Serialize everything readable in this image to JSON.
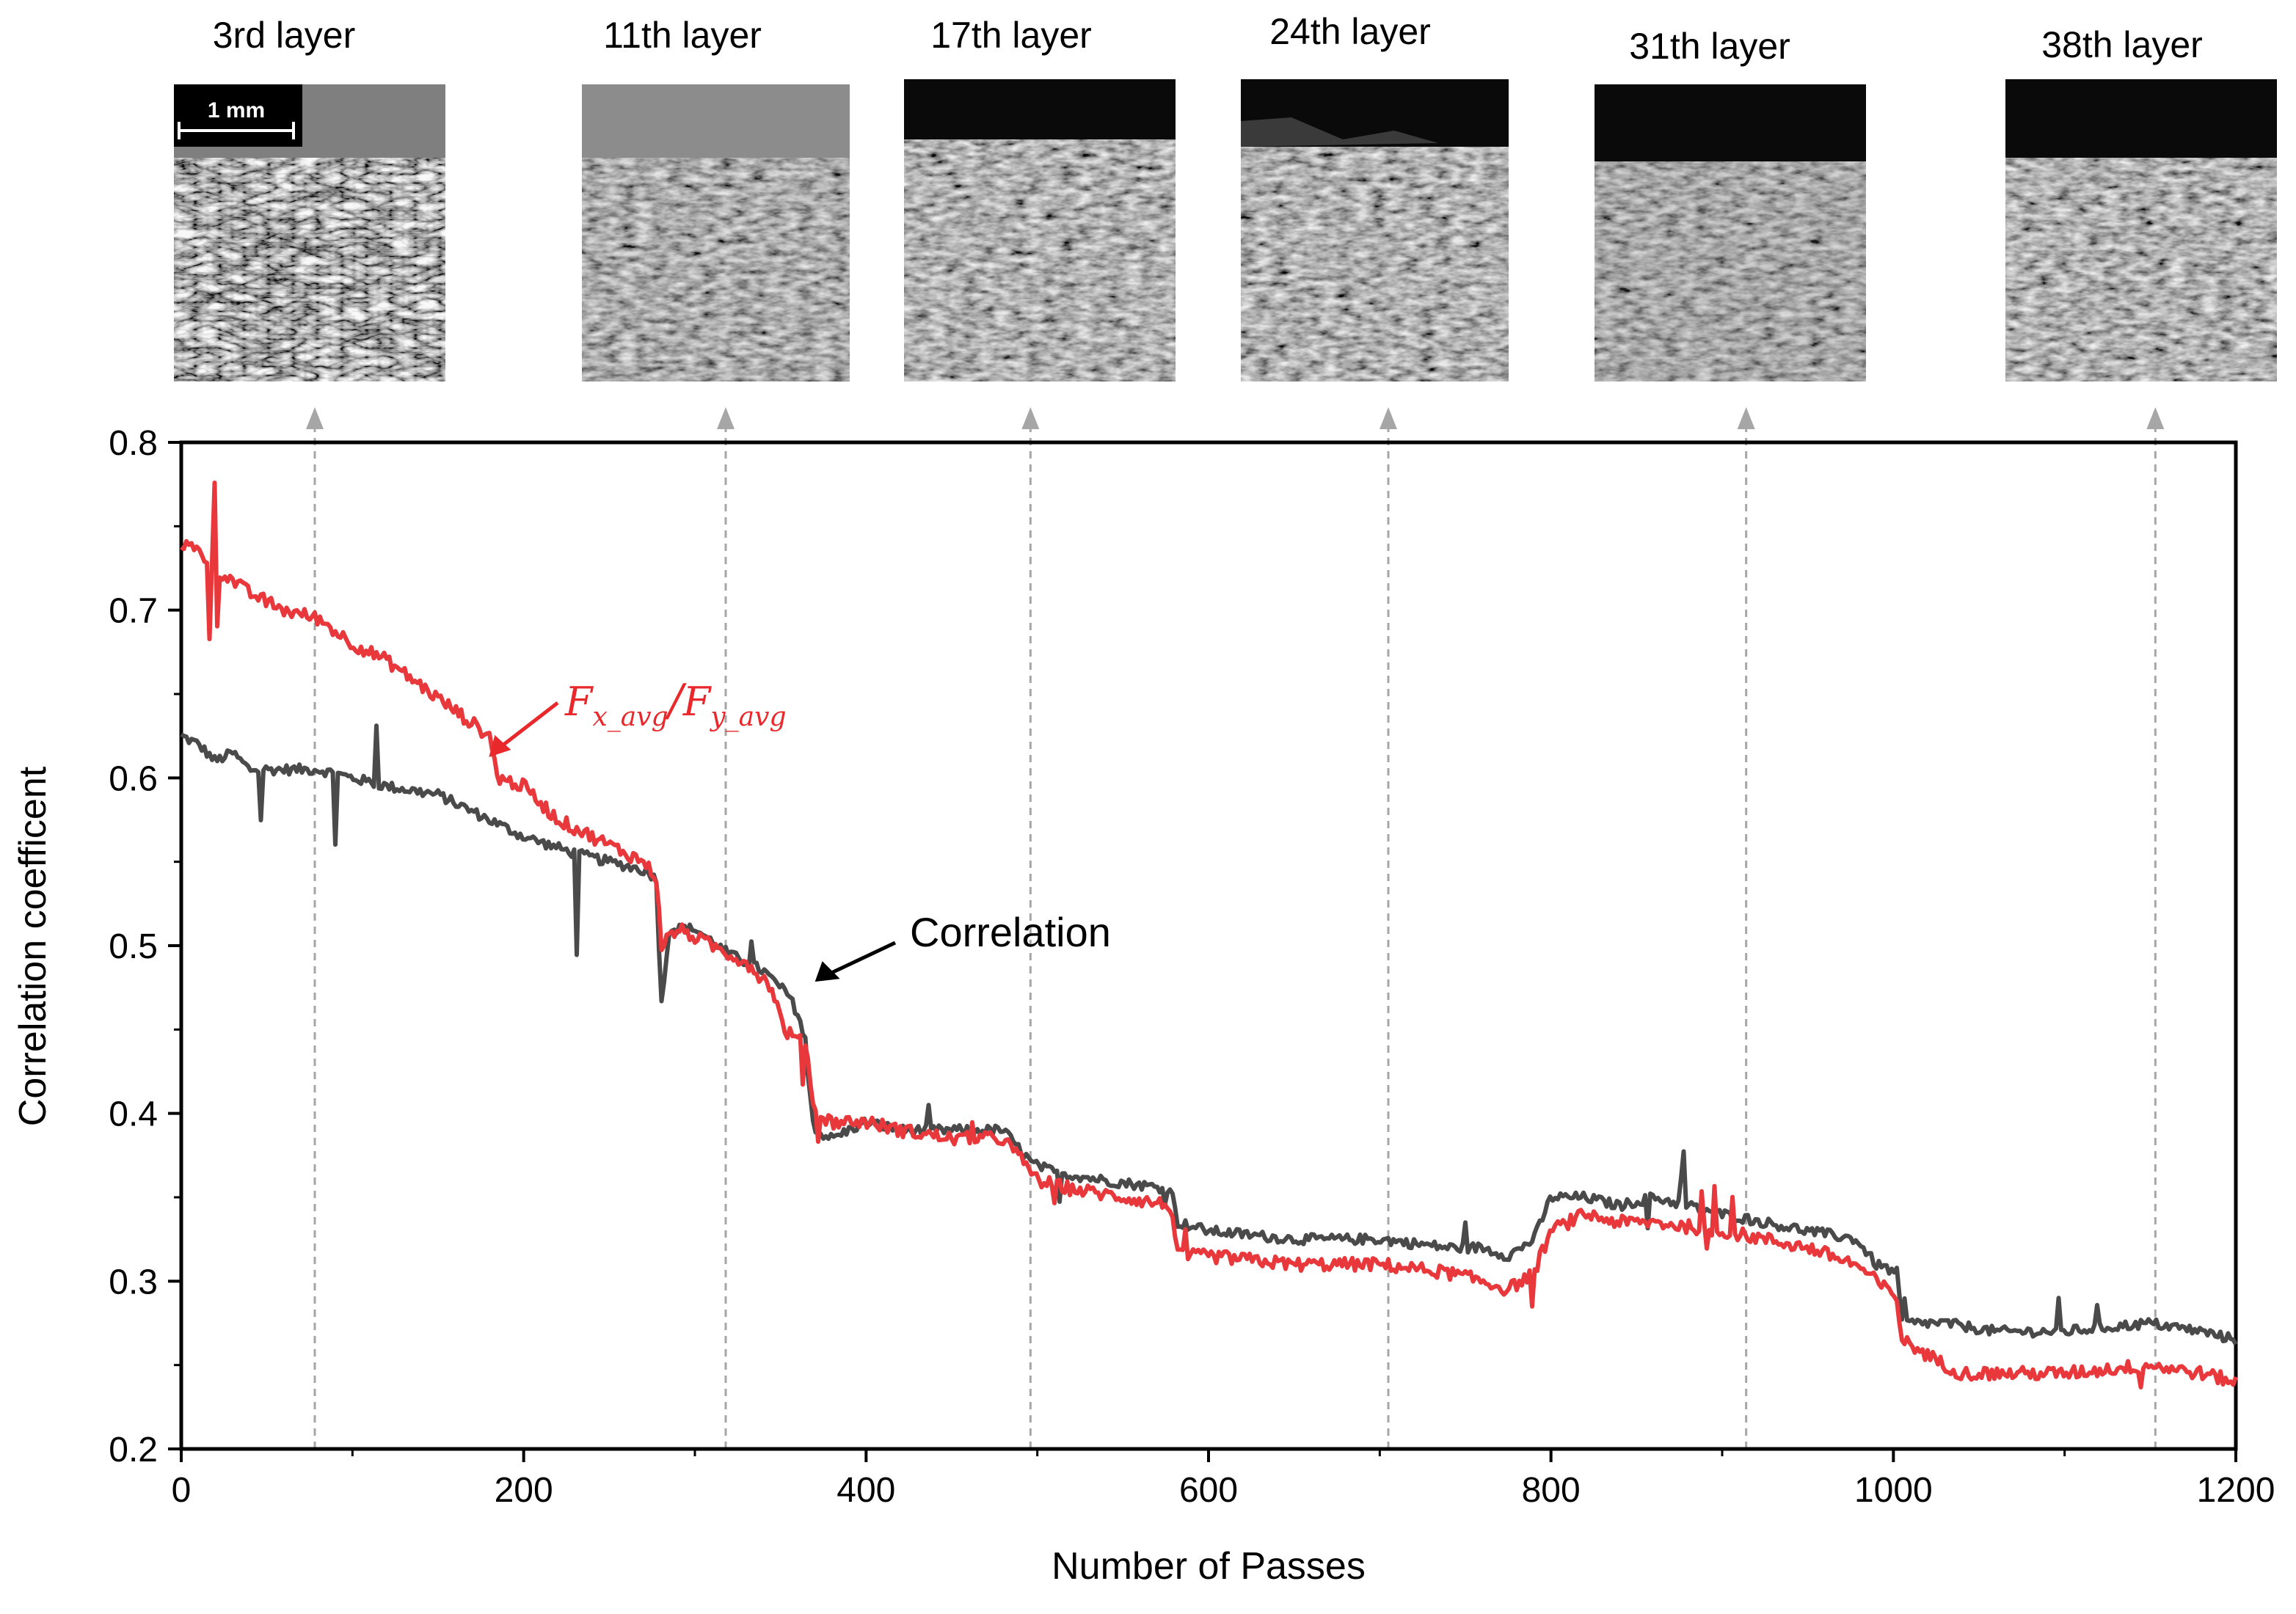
{
  "chart_data": {
    "type": "line",
    "title": "",
    "xlabel": "Number of Passes",
    "ylabel": "Correlation coefficent",
    "xlim": [
      0,
      1200
    ],
    "ylim": [
      0.2,
      0.8
    ],
    "x_ticks": [
      "0",
      "200",
      "400",
      "600",
      "800",
      "1000",
      "1200"
    ],
    "y_ticks": [
      "0.2",
      "0.3",
      "0.4",
      "0.5",
      "0.6",
      "0.7",
      "0.8"
    ],
    "colors": {
      "ratio": "#e8383b",
      "correlation": "#4a4a4a",
      "guide": "#a6a6a6"
    },
    "series": [
      {
        "name": "Correlation",
        "color": "#4a4a4a",
        "x": [
          0,
          10,
          20,
          30,
          40,
          60,
          80,
          100,
          120,
          150,
          180,
          200,
          230,
          270,
          278,
          280,
          285,
          300,
          320,
          340,
          355,
          362,
          370,
          380,
          400,
          420,
          450,
          480,
          497,
          510,
          540,
          578,
          582,
          600,
          650,
          700,
          740,
          760,
          775,
          790,
          800,
          820,
          840,
          860,
          900,
          950,
          978,
          990,
          1002,
          1005,
          1030,
          1060,
          1100,
          1150,
          1180,
          1200
        ],
        "y": [
          0.625,
          0.62,
          0.61,
          0.615,
          0.605,
          0.605,
          0.605,
          0.6,
          0.595,
          0.59,
          0.575,
          0.565,
          0.555,
          0.545,
          0.54,
          0.46,
          0.51,
          0.51,
          0.495,
          0.485,
          0.47,
          0.455,
          0.39,
          0.385,
          0.395,
          0.39,
          0.39,
          0.39,
          0.37,
          0.365,
          0.36,
          0.355,
          0.335,
          0.33,
          0.325,
          0.325,
          0.32,
          0.32,
          0.315,
          0.325,
          0.35,
          0.35,
          0.345,
          0.35,
          0.34,
          0.33,
          0.325,
          0.31,
          0.305,
          0.275,
          0.275,
          0.27,
          0.27,
          0.275,
          0.27,
          0.265
        ]
      },
      {
        "name": "Fx_avg/Fy_avg",
        "color": "#e8383b",
        "x": [
          0,
          10,
          20,
          40,
          60,
          80,
          100,
          120,
          140,
          160,
          180,
          185,
          200,
          220,
          250,
          270,
          278,
          280,
          290,
          310,
          330,
          345,
          352,
          365,
          370,
          380,
          400,
          420,
          450,
          480,
          497,
          500,
          520,
          550,
          578,
          582,
          600,
          650,
          700,
          740,
          760,
          775,
          790,
          800,
          820,
          840,
          860,
          900,
          950,
          978,
          990,
          1002,
          1005,
          1030,
          1040,
          1060,
          1100,
          1150,
          1180,
          1200
        ],
        "y": [
          0.74,
          0.735,
          0.725,
          0.71,
          0.7,
          0.695,
          0.68,
          0.67,
          0.655,
          0.64,
          0.625,
          0.6,
          0.595,
          0.575,
          0.56,
          0.55,
          0.54,
          0.5,
          0.51,
          0.5,
          0.49,
          0.475,
          0.45,
          0.44,
          0.4,
          0.395,
          0.395,
          0.39,
          0.385,
          0.385,
          0.365,
          0.36,
          0.355,
          0.35,
          0.345,
          0.315,
          0.315,
          0.31,
          0.31,
          0.305,
          0.3,
          0.295,
          0.305,
          0.33,
          0.34,
          0.335,
          0.335,
          0.33,
          0.32,
          0.31,
          0.3,
          0.29,
          0.265,
          0.25,
          0.245,
          0.245,
          0.245,
          0.25,
          0.245,
          0.24
        ]
      }
    ],
    "annotations": [
      {
        "text": "Correlation",
        "points_to": {
          "x": 365,
          "y": 0.475
        }
      },
      {
        "text_main_1": "F",
        "sub_1": "x_avg",
        "slash": "/",
        "text_main_2": "F",
        "sub_2": "y_avg",
        "points_to": {
          "x": 178,
          "y": 0.615
        }
      }
    ],
    "layer_guides": [
      {
        "label": "3rd layer",
        "x": 78
      },
      {
        "label": "11th layer",
        "x": 318
      },
      {
        "label": "17th layer",
        "x": 496
      },
      {
        "label": "24th layer",
        "x": 705
      },
      {
        "label": "31th layer",
        "x": 914
      },
      {
        "label": "38th layer",
        "x": 1153
      }
    ],
    "scale_bar": "1 mm"
  }
}
